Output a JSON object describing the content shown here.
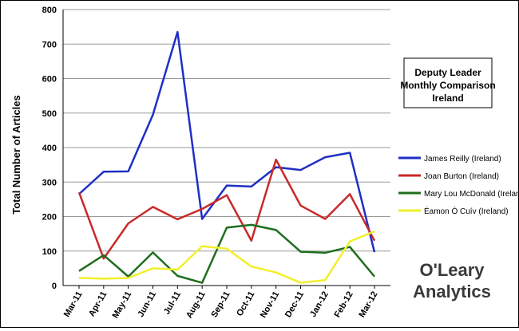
{
  "chart_data": {
    "type": "line",
    "title": "Deputy Leader Monthly Comparison Ireland",
    "title_lines": [
      "Deputy Leader",
      "Monthly Comparison",
      "Ireland"
    ],
    "xlabel": "",
    "ylabel": "Total Number of Articles",
    "ylim": [
      0,
      800
    ],
    "yticks": [
      0,
      100,
      200,
      300,
      400,
      500,
      600,
      700,
      800
    ],
    "grid": true,
    "legend_position": "right",
    "categories": [
      "Mar-11",
      "Apr-11",
      "May-11",
      "Jun-11",
      "Jul-11",
      "Aug-11",
      "Sep-11",
      "Oct-11",
      "Nov-11",
      "Dec-11",
      "Jan-12",
      "Feb-12",
      "Mar-12"
    ],
    "series": [
      {
        "name": "James Reilly (Ireland)",
        "color": "#1f2fc6",
        "values": [
          265,
          330,
          331,
          495,
          735,
          193,
          290,
          287,
          343,
          335,
          372,
          385,
          97
        ]
      },
      {
        "name": "Joan Burton (Ireland)",
        "color": "#c82a2a",
        "values": [
          270,
          78,
          180,
          228,
          192,
          222,
          262,
          130,
          365,
          232,
          193,
          265,
          130
        ]
      },
      {
        "name": "Mary Lou McDonald (Ireland)",
        "color": "#1e6e1e",
        "values": [
          42,
          88,
          26,
          96,
          28,
          8,
          168,
          176,
          161,
          98,
          95,
          112,
          26
        ]
      },
      {
        "name": "Éamon Ó Cuív (Ireland)",
        "color": "#f2ef2a",
        "values": [
          22,
          20,
          22,
          50,
          46,
          114,
          107,
          55,
          38,
          8,
          16,
          128,
          157
        ]
      }
    ],
    "watermark": "O'Leary Analytics"
  }
}
